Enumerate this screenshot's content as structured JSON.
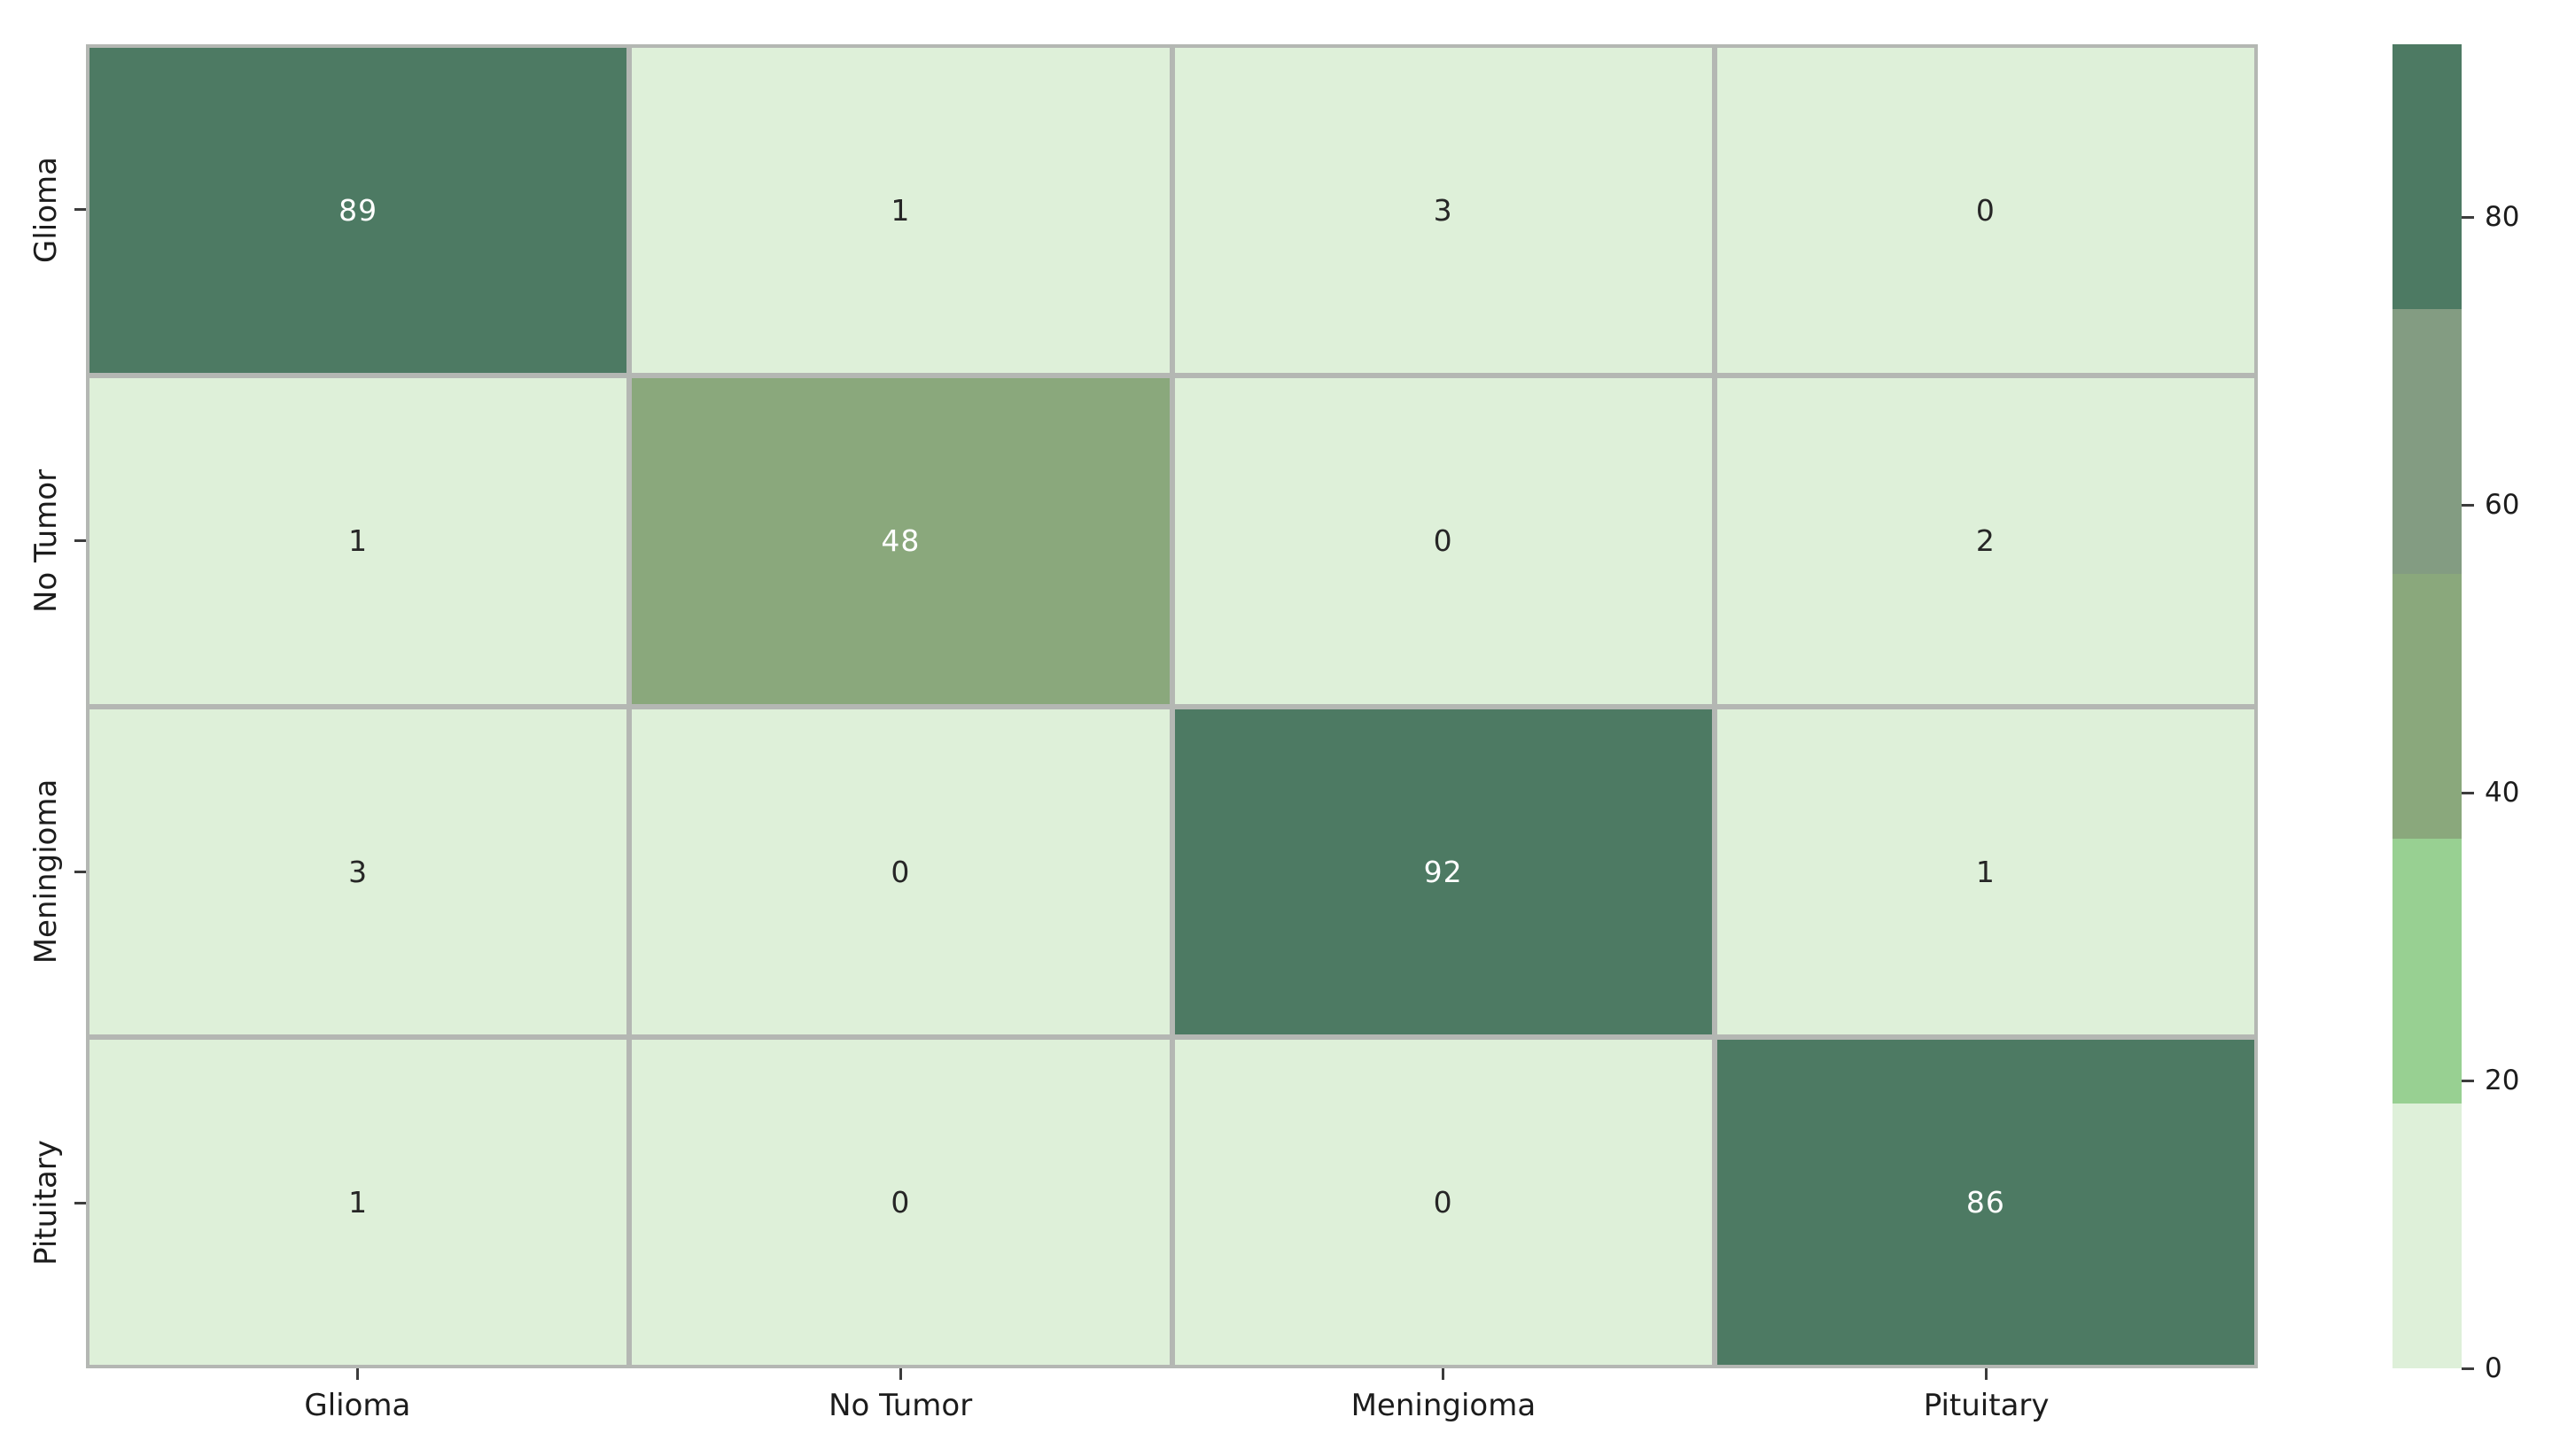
{
  "figure": {
    "background_color": "#ffffff",
    "grid_line_color": "#b4b7b3",
    "tick_mark_color": "#3c3c3c",
    "axis_label_color": "#1c1c1c",
    "annot_color_on_dark": "#ffffff",
    "annot_color_on_light": "#262626"
  },
  "chart_data": {
    "type": "heatmap",
    "title": "",
    "xlabel": "",
    "ylabel": "",
    "x_categories": [
      "Glioma",
      "No Tumor",
      "Meningioma",
      "Pituitary"
    ],
    "y_categories": [
      "Glioma",
      "No Tumor",
      "Meningioma",
      "Pituitary"
    ],
    "matrix": [
      [
        89,
        1,
        3,
        0
      ],
      [
        1,
        48,
        0,
        2
      ],
      [
        3,
        0,
        92,
        1
      ],
      [
        1,
        0,
        0,
        86
      ]
    ],
    "vmin": 0,
    "vmax": 92,
    "colormap_segments": [
      "#def0d9",
      "#98d092",
      "#8aa87c",
      "#839c82",
      "#4d7a63"
    ],
    "colorbar_ticks": [
      0,
      20,
      40,
      60,
      80
    ],
    "colorbar_position": "right",
    "grid": "gray cell borders",
    "annotations": "integer count in every cell"
  }
}
